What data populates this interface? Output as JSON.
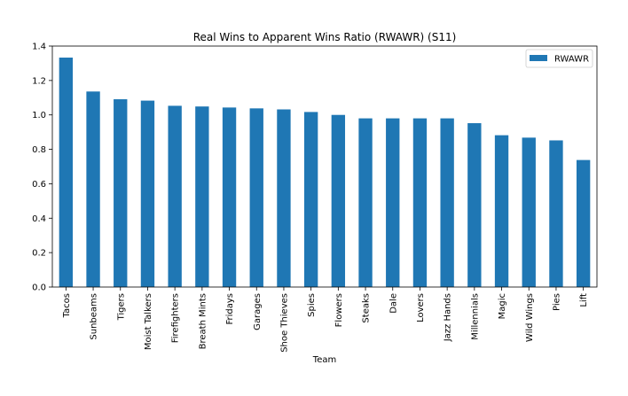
{
  "chart_data": {
    "type": "bar",
    "title": "Real Wins to Apparent Wins Ratio (RWAWR) (S11)",
    "xlabel": "Team",
    "ylabel": "",
    "ylim": [
      0,
      1.4
    ],
    "yticks": [
      "0.0",
      "0.2",
      "0.4",
      "0.6",
      "0.8",
      "1.0",
      "1.2",
      "1.4"
    ],
    "categories": [
      "Tacos",
      "Sunbeams",
      "Tigers",
      "Moist Talkers",
      "Firefighters",
      "Breath Mints",
      "Fridays",
      "Garages",
      "Shoe Thieves",
      "Spies",
      "Flowers",
      "Steaks",
      "Dale",
      "Lovers",
      "Jazz Hands",
      "Millennials",
      "Magic",
      "Wild Wings",
      "Pies",
      "Lift"
    ],
    "series": [
      {
        "name": "RWAWR",
        "color": "#1f77b4",
        "values": [
          1.333,
          1.136,
          1.091,
          1.083,
          1.053,
          1.049,
          1.043,
          1.038,
          1.032,
          1.017,
          1.0,
          0.98,
          0.98,
          0.98,
          0.98,
          0.952,
          0.882,
          0.868,
          0.852,
          0.738
        ]
      }
    ],
    "legend": {
      "position": "top-right",
      "entries": [
        "RWAWR"
      ]
    },
    "grid": false
  }
}
